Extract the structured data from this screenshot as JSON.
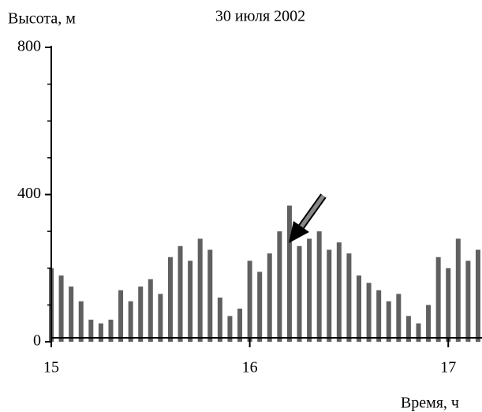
{
  "chart_data": {
    "type": "bar",
    "title": "30 июля 2002",
    "y_label": "Высота, м",
    "x_label": "Время, ч",
    "x": [
      15.0,
      15.05,
      15.1,
      15.15,
      15.2,
      15.25,
      15.3,
      15.35,
      15.4,
      15.45,
      15.5,
      15.55,
      15.6,
      15.65,
      15.7,
      15.75,
      15.8,
      15.85,
      15.9,
      15.95,
      16.0,
      16.05,
      16.1,
      16.15,
      16.2,
      16.25,
      16.3,
      16.35,
      16.4,
      16.45,
      16.5,
      16.55,
      16.6,
      16.65,
      16.7,
      16.75,
      16.8,
      16.85,
      16.9,
      16.95,
      17.0,
      17.05,
      17.1,
      17.15
    ],
    "values": [
      200,
      180,
      150,
      110,
      60,
      50,
      60,
      140,
      110,
      150,
      170,
      130,
      230,
      260,
      220,
      280,
      250,
      120,
      70,
      90,
      220,
      190,
      240,
      300,
      370,
      260,
      280,
      300,
      250,
      270,
      240,
      180,
      160,
      140,
      110,
      130,
      70,
      50,
      100,
      230,
      200,
      280,
      220,
      250
    ],
    "color": "#2b2b2b",
    "xlim": [
      15,
      17.17
    ],
    "xticks": [
      15,
      16,
      17
    ],
    "ylim": [
      0,
      800
    ],
    "yticks": [
      0,
      400,
      800
    ],
    "yminorticks": [
      100,
      200,
      300,
      500,
      600,
      700
    ]
  }
}
